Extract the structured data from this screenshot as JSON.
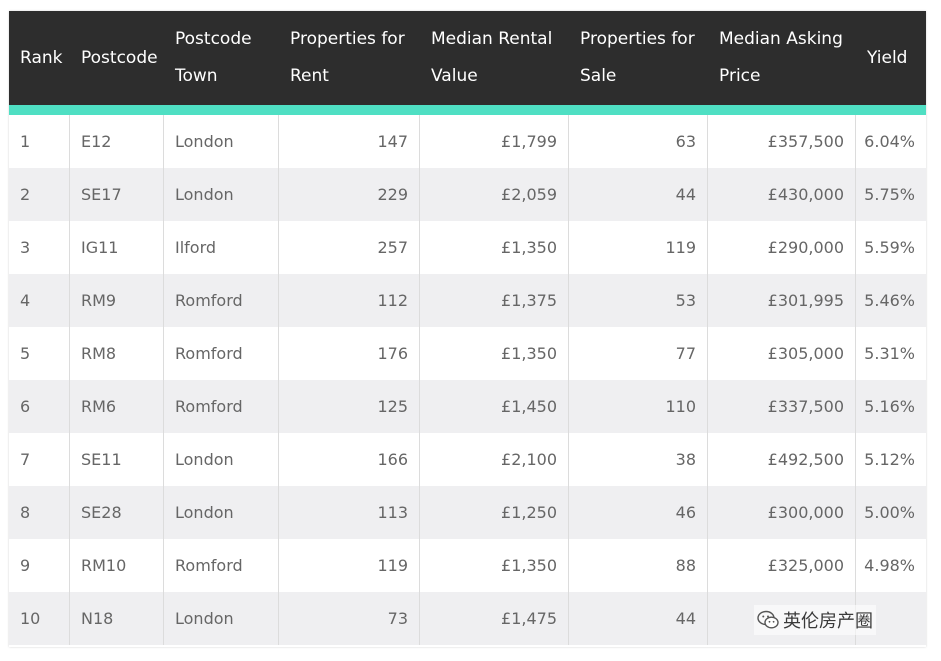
{
  "table": {
    "headers": [
      "Rank",
      "Postcode",
      "Postcode Town",
      "Properties for Rent",
      "Median Rental Value",
      "Properties for Sale",
      "Median Asking Price",
      "Yield"
    ],
    "rows": [
      [
        "1",
        "E12",
        "London",
        "147",
        "£1,799",
        "63",
        "£357,500",
        "6.04%"
      ],
      [
        "2",
        "SE17",
        "London",
        "229",
        "£2,059",
        "44",
        "£430,000",
        "5.75%"
      ],
      [
        "3",
        "IG11",
        "Ilford",
        "257",
        "£1,350",
        "119",
        "£290,000",
        "5.59%"
      ],
      [
        "4",
        "RM9",
        "Romford",
        "112",
        "£1,375",
        "53",
        "£301,995",
        "5.46%"
      ],
      [
        "5",
        "RM8",
        "Romford",
        "176",
        "£1,350",
        "77",
        "£305,000",
        "5.31%"
      ],
      [
        "6",
        "RM6",
        "Romford",
        "125",
        "£1,450",
        "110",
        "£337,500",
        "5.16%"
      ],
      [
        "7",
        "SE11",
        "London",
        "166",
        "£2,100",
        "38",
        "£492,500",
        "5.12%"
      ],
      [
        "8",
        "SE28",
        "London",
        "113",
        "£1,250",
        "46",
        "£300,000",
        "5.00%"
      ],
      [
        "9",
        "RM10",
        "Romford",
        "119",
        "£1,350",
        "88",
        "£325,000",
        "4.98%"
      ],
      [
        "10",
        "N18",
        "London",
        "73",
        "£1,475",
        "44",
        "",
        ""
      ]
    ]
  },
  "watermark": {
    "text": "英伦房产圈",
    "icon": "wechat-icon"
  },
  "colors": {
    "header_bg": "#2d2d2d",
    "accent": "#4fdfc3",
    "row_alt": "#efeff1"
  }
}
